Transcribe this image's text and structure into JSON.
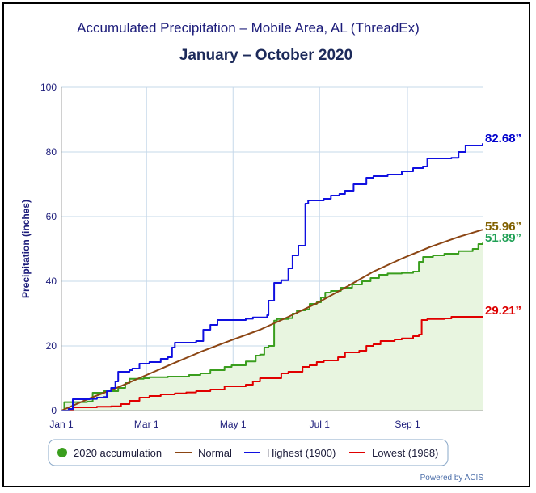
{
  "chart_data": {
    "type": "line",
    "title": "Accumulated Precipitation – Mobile Area, AL (ThreadEx)",
    "subtitle": "January – October 2020",
    "xlabel": "",
    "ylabel": "Precipitation (inches)",
    "ylim": [
      0,
      100
    ],
    "yticks": [
      "0",
      "20",
      "40",
      "60",
      "80",
      "100"
    ],
    "xticks": [
      {
        "label": "Jan 1",
        "day": 0
      },
      {
        "label": "Mar 1",
        "day": 60
      },
      {
        "label": "May 1",
        "day": 121
      },
      {
        "label": "Jul 1",
        "day": 182
      },
      {
        "label": "Sep 1",
        "day": 244
      }
    ],
    "grid": true,
    "legend_position": "bottom",
    "series": [
      {
        "name": "2020 accumulation",
        "color": "#3a9e1e",
        "fill": "#e8f5e0",
        "style": "step-area",
        "end_label": "51.89”",
        "label_color": "#1fa055",
        "points": [
          [
            0,
            0
          ],
          [
            2,
            2.6
          ],
          [
            18,
            2.8
          ],
          [
            22,
            5.5
          ],
          [
            30,
            6.0
          ],
          [
            40,
            7.0
          ],
          [
            45,
            8.5
          ],
          [
            48,
            9.8
          ],
          [
            58,
            10.0
          ],
          [
            62,
            10.3
          ],
          [
            75,
            10.5
          ],
          [
            90,
            11.0
          ],
          [
            98,
            11.5
          ],
          [
            105,
            12.5
          ],
          [
            115,
            13.5
          ],
          [
            120,
            14.0
          ],
          [
            130,
            15.2
          ],
          [
            137,
            17.0
          ],
          [
            140,
            17.3
          ],
          [
            143,
            19.5
          ],
          [
            146,
            20.0
          ],
          [
            150,
            27.8
          ],
          [
            152,
            28.3
          ],
          [
            160,
            28.6
          ],
          [
            163,
            30.0
          ],
          [
            166,
            31.0
          ],
          [
            172,
            31.3
          ],
          [
            175,
            33.0
          ],
          [
            180,
            33.5
          ],
          [
            183,
            35.0
          ],
          [
            186,
            36.5
          ],
          [
            190,
            37.0
          ],
          [
            197,
            38.0
          ],
          [
            205,
            39.0
          ],
          [
            212,
            40.0
          ],
          [
            218,
            41.0
          ],
          [
            224,
            42.0
          ],
          [
            230,
            42.4
          ],
          [
            240,
            42.6
          ],
          [
            248,
            43.0
          ],
          [
            252,
            46.0
          ],
          [
            255,
            47.5
          ],
          [
            262,
            48.0
          ],
          [
            270,
            48.5
          ],
          [
            280,
            49.3
          ],
          [
            290,
            50.0
          ],
          [
            294,
            51.5
          ],
          [
            297,
            51.89
          ]
        ]
      },
      {
        "name": "Normal",
        "color": "#8b4513",
        "style": "line",
        "end_label": "55.96”",
        "label_color": "#806000",
        "points": [
          [
            0,
            0
          ],
          [
            20,
            3.8
          ],
          [
            40,
            7.2
          ],
          [
            60,
            11.0
          ],
          [
            80,
            14.8
          ],
          [
            100,
            18.5
          ],
          [
            120,
            21.8
          ],
          [
            140,
            25.0
          ],
          [
            160,
            29.0
          ],
          [
            180,
            33.2
          ],
          [
            200,
            38.0
          ],
          [
            220,
            43.0
          ],
          [
            240,
            47.0
          ],
          [
            260,
            50.6
          ],
          [
            280,
            53.7
          ],
          [
            297,
            55.96
          ]
        ]
      },
      {
        "name": "Highest (1900)",
        "color": "#1010e0",
        "style": "step",
        "end_label": "82.68”",
        "label_color": "#0000cc",
        "points": [
          [
            0,
            0
          ],
          [
            5,
            0.5
          ],
          [
            8,
            3.5
          ],
          [
            20,
            3.6
          ],
          [
            25,
            4.0
          ],
          [
            30,
            4.2
          ],
          [
            32,
            6.0
          ],
          [
            35,
            7.0
          ],
          [
            38,
            9.0
          ],
          [
            40,
            12.0
          ],
          [
            48,
            12.5
          ],
          [
            50,
            13.0
          ],
          [
            55,
            14.5
          ],
          [
            62,
            15.0
          ],
          [
            70,
            16.0
          ],
          [
            75,
            16.5
          ],
          [
            78,
            19.5
          ],
          [
            80,
            21.0
          ],
          [
            95,
            21.5
          ],
          [
            100,
            25.0
          ],
          [
            105,
            26.5
          ],
          [
            110,
            28.0
          ],
          [
            130,
            28.4
          ],
          [
            135,
            28.8
          ],
          [
            145,
            29.5
          ],
          [
            146,
            34.0
          ],
          [
            150,
            39.5
          ],
          [
            155,
            40.3
          ],
          [
            160,
            44.0
          ],
          [
            163,
            48.0
          ],
          [
            167,
            51.0
          ],
          [
            172,
            64.0
          ],
          [
            174,
            65.0
          ],
          [
            185,
            65.5
          ],
          [
            190,
            66.5
          ],
          [
            196,
            67.0
          ],
          [
            200,
            68.0
          ],
          [
            206,
            70.0
          ],
          [
            215,
            72.0
          ],
          [
            220,
            72.5
          ],
          [
            230,
            73.0
          ],
          [
            240,
            74.0
          ],
          [
            248,
            75.0
          ],
          [
            255,
            75.5
          ],
          [
            258,
            78.0
          ],
          [
            275,
            78.2
          ],
          [
            280,
            80.0
          ],
          [
            285,
            82.0
          ],
          [
            297,
            82.68
          ]
        ]
      },
      {
        "name": "Lowest (1968)",
        "color": "#e00000",
        "style": "step",
        "end_label": "29.21”",
        "label_color": "#dd0000",
        "points": [
          [
            0,
            0
          ],
          [
            8,
            1.0
          ],
          [
            25,
            1.2
          ],
          [
            35,
            1.3
          ],
          [
            42,
            2.0
          ],
          [
            48,
            3.0
          ],
          [
            55,
            4.0
          ],
          [
            62,
            4.5
          ],
          [
            70,
            5.0
          ],
          [
            80,
            5.3
          ],
          [
            88,
            5.6
          ],
          [
            95,
            6.0
          ],
          [
            105,
            6.5
          ],
          [
            115,
            7.5
          ],
          [
            130,
            8.0
          ],
          [
            135,
            9.0
          ],
          [
            140,
            10.0
          ],
          [
            155,
            11.5
          ],
          [
            160,
            12.0
          ],
          [
            170,
            13.5
          ],
          [
            175,
            14.0
          ],
          [
            180,
            15.0
          ],
          [
            185,
            15.5
          ],
          [
            195,
            16.5
          ],
          [
            200,
            18.0
          ],
          [
            210,
            18.5
          ],
          [
            215,
            20.0
          ],
          [
            220,
            20.5
          ],
          [
            225,
            21.5
          ],
          [
            235,
            22.0
          ],
          [
            240,
            22.3
          ],
          [
            248,
            23.0
          ],
          [
            252,
            23.5
          ],
          [
            254,
            28.0
          ],
          [
            258,
            28.3
          ],
          [
            270,
            28.5
          ],
          [
            275,
            29.0
          ],
          [
            297,
            29.21
          ]
        ]
      }
    ]
  },
  "credit": "Powered by ACIS"
}
